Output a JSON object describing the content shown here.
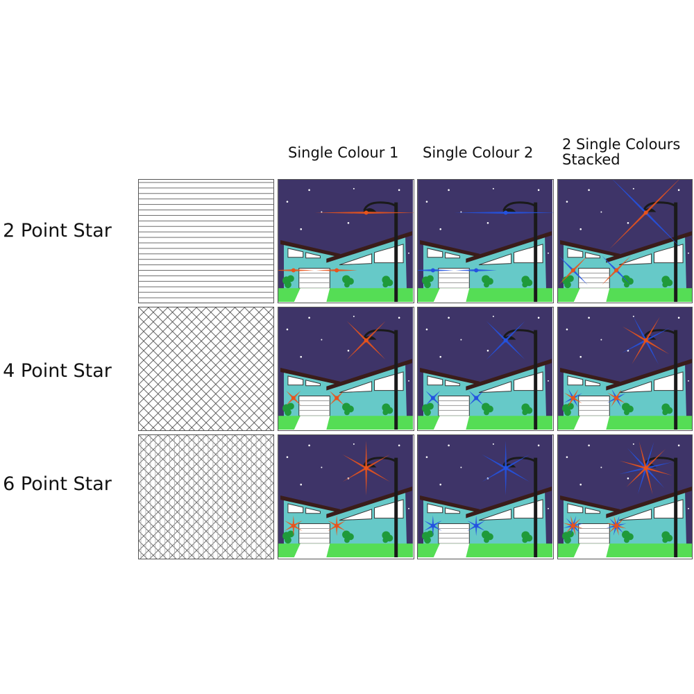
{
  "columns": [
    {
      "label": "Single Colour 1"
    },
    {
      "label": "Single Colour 2"
    },
    {
      "label": "2 Single Colours Stacked",
      "line1": "2 Single Colours",
      "line2": "Stacked"
    }
  ],
  "rows": [
    {
      "label": "2 Point Star",
      "points": 2,
      "pattern": "horizontal-lines"
    },
    {
      "label": "4 Point Star",
      "points": 4,
      "pattern": "diagonal-crosshatch"
    },
    {
      "label": "6 Point Star",
      "points": 6,
      "pattern": "crosshatch-with-verticals"
    }
  ],
  "colors": {
    "colour1": "#e8531c",
    "colour2": "#2452e0",
    "sky": "#3e3468",
    "house": "#66c9c8",
    "grass": "#55dd55",
    "roof": "#3a1d1a"
  }
}
